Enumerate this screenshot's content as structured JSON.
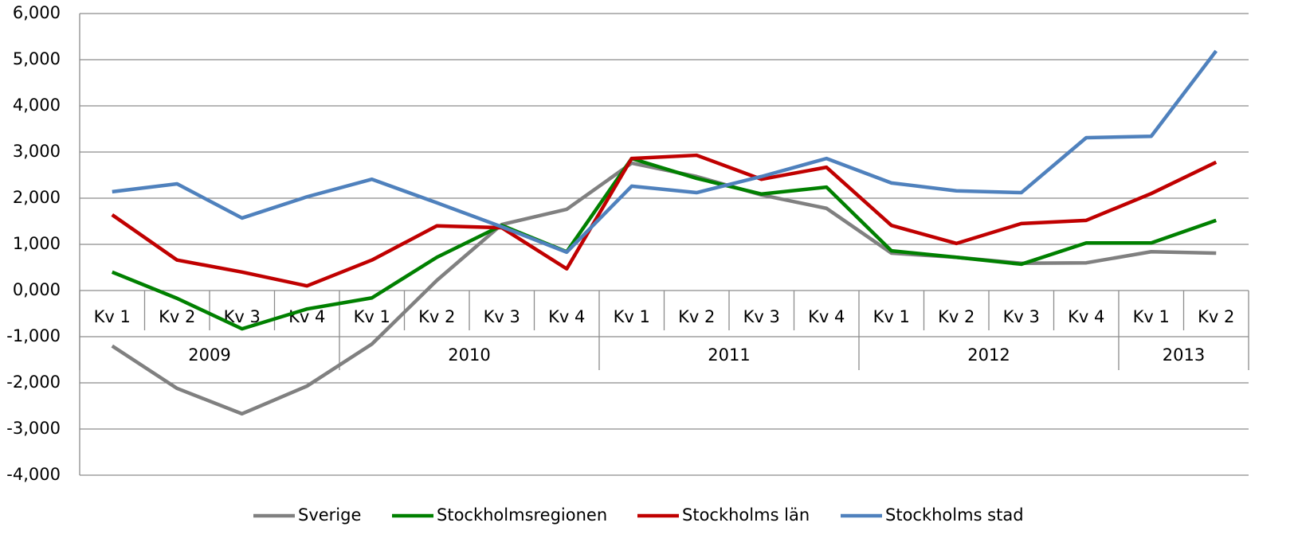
{
  "chart_data": {
    "type": "line",
    "category_groups": [
      {
        "label": "2009",
        "categories": [
          "Kv 1",
          "Kv 2",
          "Kv 3",
          "Kv 4"
        ]
      },
      {
        "label": "2010",
        "categories": [
          "Kv 1",
          "Kv 2",
          "Kv 3",
          "Kv 4"
        ]
      },
      {
        "label": "2011",
        "categories": [
          "Kv 1",
          "Kv 2",
          "Kv 3",
          "Kv 4"
        ]
      },
      {
        "label": "2012",
        "categories": [
          "Kv 1",
          "Kv 2",
          "Kv 3",
          "Kv 4"
        ]
      },
      {
        "label": "2013",
        "categories": [
          "Kv 1",
          "Kv 2"
        ]
      }
    ],
    "series": [
      {
        "name": "Sverige",
        "color": "#808080",
        "values": [
          -1.2,
          -2.12,
          -2.67,
          -2.07,
          -1.16,
          0.22,
          1.43,
          1.76,
          2.76,
          2.47,
          2.07,
          1.78,
          0.81,
          0.72,
          0.59,
          0.6,
          0.84,
          0.81
        ]
      },
      {
        "name": "Stockholmsregionen",
        "color": "#008000",
        "values": [
          0.4,
          -0.17,
          -0.83,
          -0.4,
          -0.16,
          0.72,
          1.41,
          0.84,
          2.86,
          2.43,
          2.09,
          2.24,
          0.86,
          0.72,
          0.57,
          1.03,
          1.03,
          1.52
        ]
      },
      {
        "name": "Stockholms län",
        "color": "#c00000",
        "values": [
          1.64,
          0.66,
          0.4,
          0.1,
          0.66,
          1.4,
          1.36,
          0.47,
          2.86,
          2.93,
          2.41,
          2.67,
          1.41,
          1.02,
          1.45,
          1.52,
          2.1,
          2.78
        ]
      },
      {
        "name": "Stockholms stad",
        "color": "#4f81bd",
        "values": [
          2.14,
          2.31,
          1.57,
          2.03,
          2.41,
          1.9,
          1.38,
          0.83,
          2.26,
          2.12,
          2.47,
          2.86,
          2.33,
          2.16,
          2.12,
          3.31,
          3.34,
          5.19
        ]
      }
    ],
    "ylim": [
      -4,
      6
    ],
    "yticks": [
      {
        "value": -4,
        "label": "-4,000"
      },
      {
        "value": -3,
        "label": "-3,000"
      },
      {
        "value": -2,
        "label": "-2,000"
      },
      {
        "value": -1,
        "label": "-1,000"
      },
      {
        "value": 0,
        "label": "0,000"
      },
      {
        "value": 1,
        "label": "1,000"
      },
      {
        "value": 2,
        "label": "2,000"
      },
      {
        "value": 3,
        "label": "3,000"
      },
      {
        "value": 4,
        "label": "4,000"
      },
      {
        "value": 5,
        "label": "5,000"
      },
      {
        "value": 6,
        "label": "6,000"
      }
    ],
    "grid": true,
    "legend": "bottom"
  }
}
